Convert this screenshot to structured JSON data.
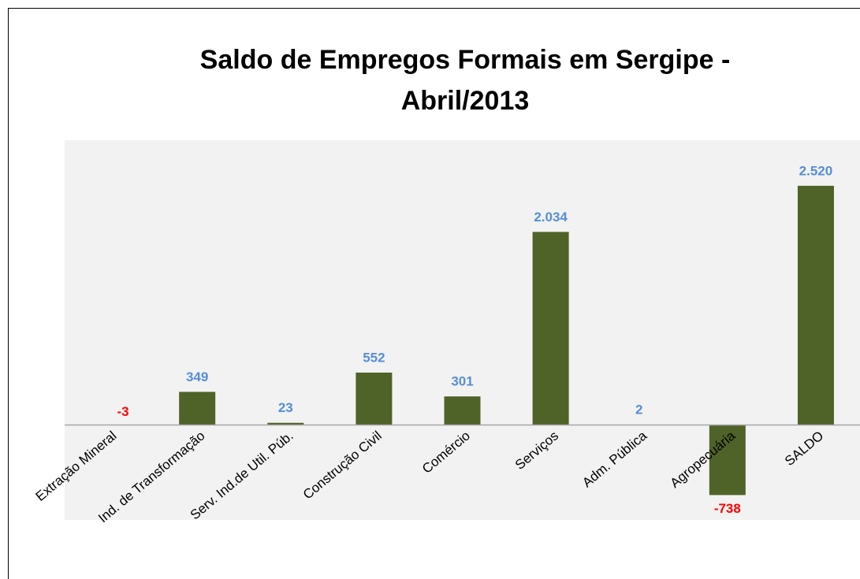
{
  "chart_data": {
    "type": "bar",
    "title": "Saldo de Empregos Formais em Sergipe - Abril/2013",
    "categories": [
      "Extração Mineral",
      "Ind. de Transformação",
      "Serv. Ind.de Util. Púb.",
      "Construção Civil",
      "Comércio",
      "Serviços",
      "Adm. Pública",
      "Agropecuária",
      "SALDO"
    ],
    "values": [
      -3,
      349,
      23,
      552,
      301,
      2034,
      2,
      -738,
      2520
    ],
    "value_labels": [
      "-3",
      "349",
      "23",
      "552",
      "301",
      "2.034",
      "2",
      "-738",
      "2.520"
    ],
    "color": "#4f6228",
    "label_colors": {
      "positive": "#558ed5",
      "negative": "#ff0000"
    },
    "ylim": [
      -1000,
      3000
    ]
  }
}
